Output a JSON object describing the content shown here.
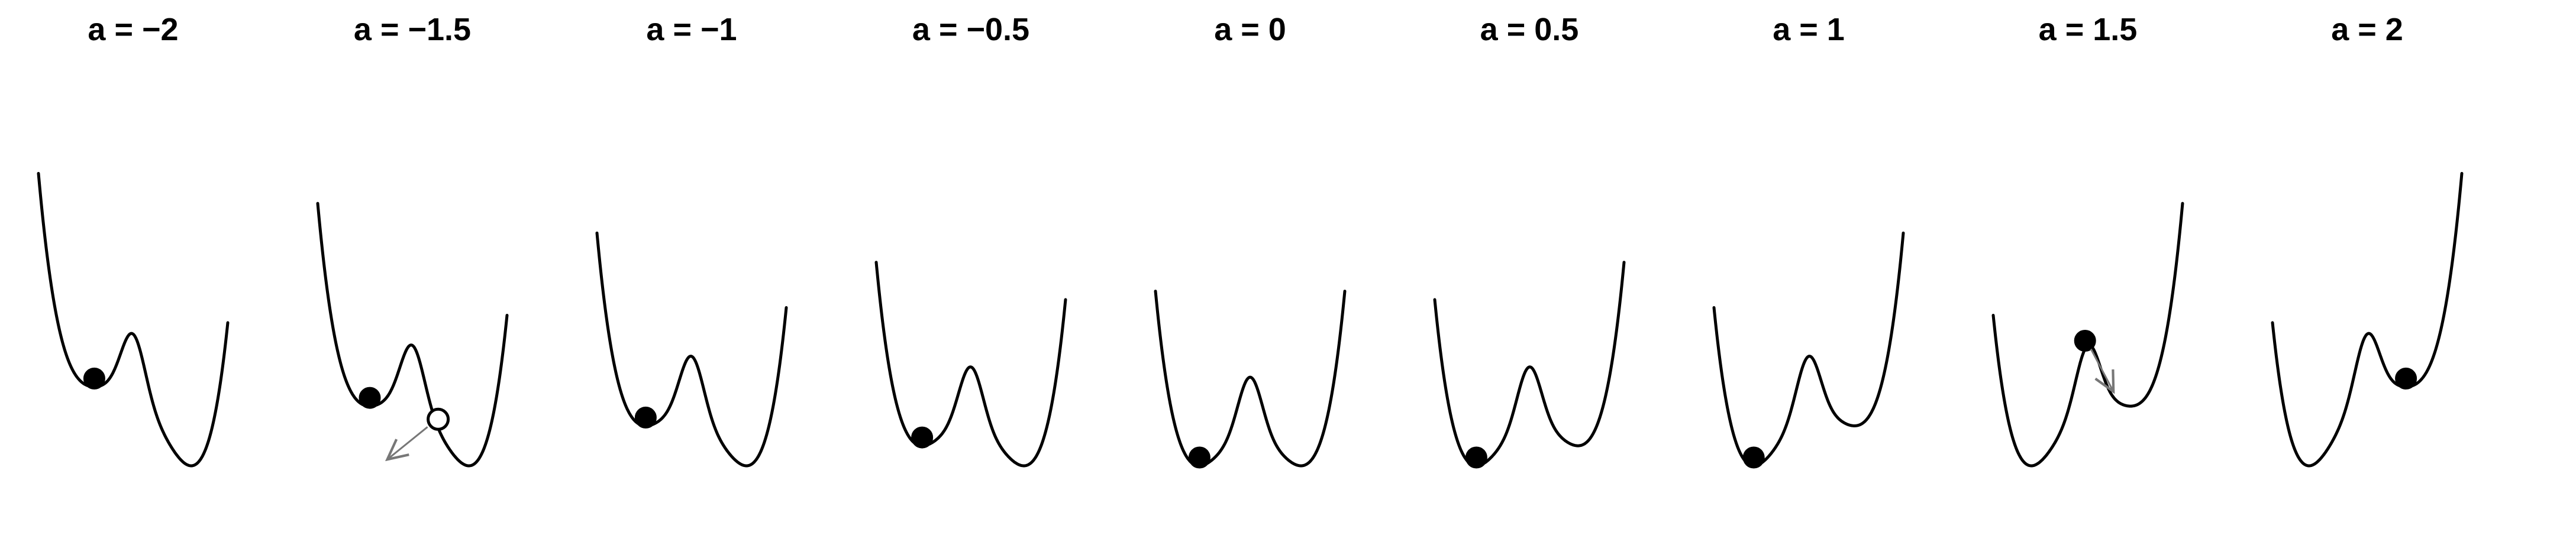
{
  "chart_data": {
    "type": "diagram",
    "colors": {
      "curve": "#000000",
      "ball": "#000000",
      "arrow": "#777777"
    },
    "panels": [
      {
        "title": "a =  −2",
        "a": -2,
        "ball": {
          "well": "left",
          "state": "filled"
        },
        "arrow": null
      },
      {
        "title": "a =  −1.5",
        "a": -1.5,
        "ball": {
          "well": "left",
          "state": "filled"
        },
        "ghost": {
          "state": "open"
        },
        "arrow": "down-left"
      },
      {
        "title": "a =  −1",
        "a": -1,
        "ball": {
          "well": "left",
          "state": "filled"
        },
        "arrow": null
      },
      {
        "title": "a =  −0.5",
        "a": -0.5,
        "ball": {
          "well": "left",
          "state": "filled"
        },
        "arrow": null
      },
      {
        "title": "a =  0",
        "a": 0,
        "ball": {
          "well": "left",
          "state": "filled"
        },
        "arrow": null
      },
      {
        "title": "a =  0.5",
        "a": 0.5,
        "ball": {
          "well": "left",
          "state": "filled"
        },
        "arrow": null
      },
      {
        "title": "a =  1",
        "a": 1,
        "ball": {
          "well": "left",
          "state": "filled"
        },
        "arrow": null
      },
      {
        "title": "a =  1.5",
        "a": 1.5,
        "ball": {
          "well": "left",
          "state": "filled"
        },
        "arrow": "down-right"
      },
      {
        "title": "a =  2",
        "a": 2,
        "ball": {
          "well": "right",
          "state": "filled"
        },
        "arrow": null
      }
    ]
  }
}
